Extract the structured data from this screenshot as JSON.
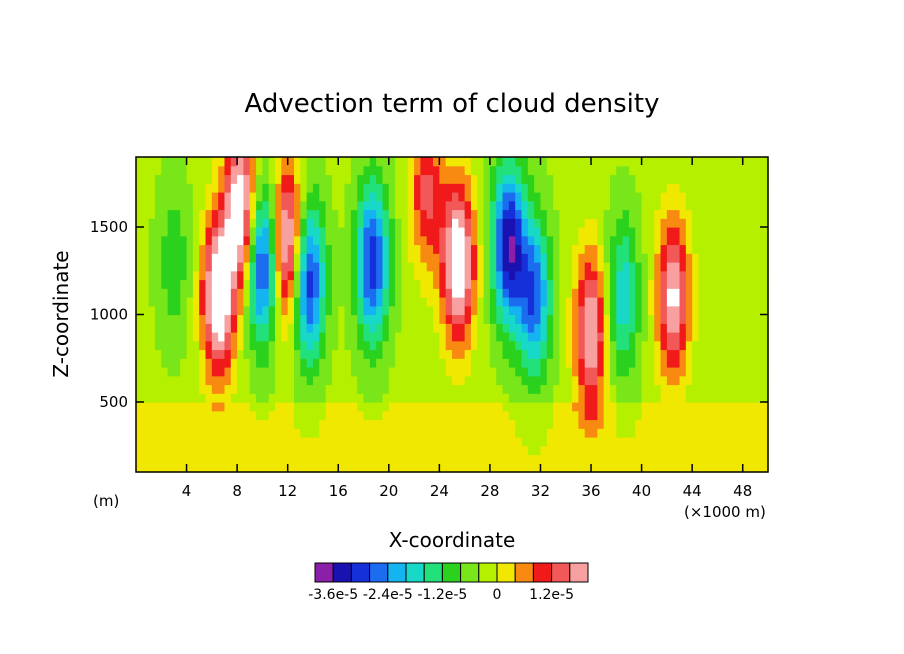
{
  "chart_data": {
    "type": "heatmap",
    "title": "Advection term of cloud density",
    "xlabel": "X-coordinate",
    "ylabel": "Z-coordinate",
    "x_unit_label": "(×1000 m)",
    "y_unit_label": "(m)",
    "xlim": [
      0,
      50
    ],
    "ylim": [
      100,
      1900
    ],
    "x_ticks": [
      4,
      8,
      12,
      16,
      20,
      24,
      28,
      32,
      36,
      40,
      44,
      48
    ],
    "y_ticks": [
      500,
      1000,
      1500
    ],
    "colorbar": {
      "levels": [
        -3.6e-05,
        -3.2e-05,
        -2.8e-05,
        -2.4e-05,
        -2e-05,
        -1.6e-05,
        -1.2e-05,
        -8e-06,
        -4e-06,
        0,
        4e-06,
        8e-06,
        1.2e-05,
        1.6e-05,
        2e-05
      ],
      "colors": [
        "#8b1fa8",
        "#1a12b0",
        "#1530d8",
        "#1c6cf0",
        "#14b4f0",
        "#18d8c8",
        "#22e07a",
        "#2ad21e",
        "#78e618",
        "#b4f000",
        "#f0e800",
        "#f88a12",
        "#f01a1a",
        "#f25858",
        "#f8a0a0"
      ],
      "tick_labels": [
        "-3.6e-5",
        "-2.4e-5",
        "-1.2e-5",
        "0",
        "1.2e-5"
      ]
    },
    "features": [
      {
        "x": 6.5,
        "z": 1100,
        "value": 3e-05
      },
      {
        "x": 8.3,
        "z": 1600,
        "value": 3e-05
      },
      {
        "x": 10.0,
        "z": 1300,
        "value": -3e-05
      },
      {
        "x": 12.0,
        "z": 1400,
        "value": 3e-05
      },
      {
        "x": 13.6,
        "z": 1200,
        "value": -3e-05
      },
      {
        "x": 18.7,
        "z": 1300,
        "value": -2.8e-05
      },
      {
        "x": 23.0,
        "z": 1700,
        "value": 1.6e-05
      },
      {
        "x": 25.5,
        "z": 1300,
        "value": 3e-05
      },
      {
        "x": 29.5,
        "z": 1400,
        "value": -3.2e-05
      },
      {
        "x": 31.5,
        "z": 1100,
        "value": -2.4e-05
      },
      {
        "x": 36.0,
        "z": 900,
        "value": 2.4e-05
      },
      {
        "x": 38.5,
        "z": 1100,
        "value": -1.6e-05
      },
      {
        "x": 42.5,
        "z": 1100,
        "value": 2.4e-05
      },
      {
        "x": 3.0,
        "z": 1300,
        "value": -8e-06
      }
    ]
  }
}
